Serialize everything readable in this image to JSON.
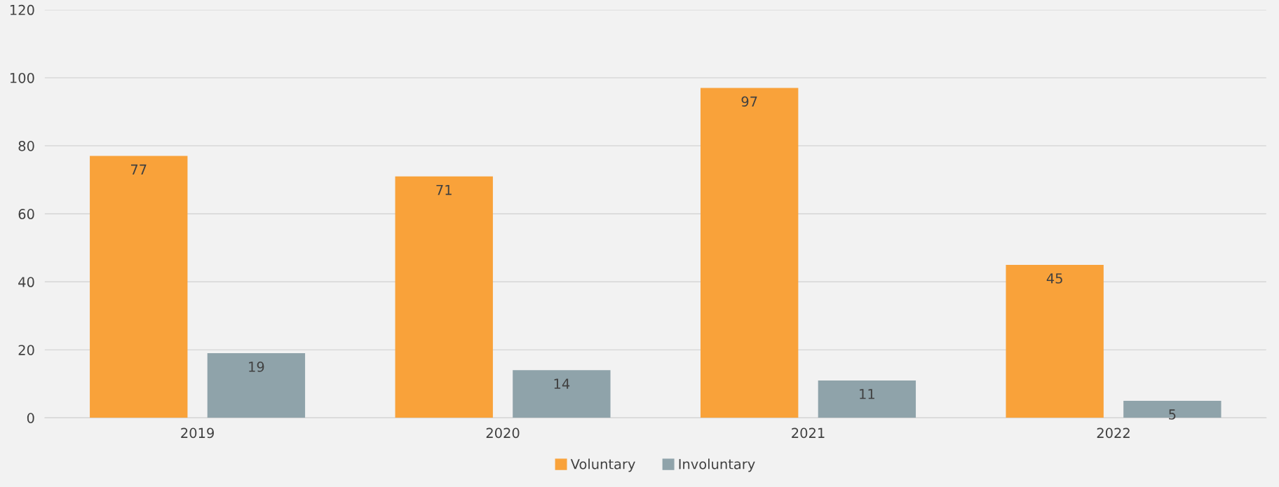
{
  "chart_data": {
    "type": "bar",
    "categories": [
      "2019",
      "2020",
      "2021",
      "2022"
    ],
    "series": [
      {
        "name": "Voluntary",
        "color": "#f9a23a",
        "values": [
          77,
          71,
          97,
          45
        ]
      },
      {
        "name": "Involuntary",
        "color": "#8fa3aa",
        "values": [
          19,
          14,
          11,
          5
        ]
      }
    ],
    "ylim": [
      0,
      120
    ],
    "yticks": [
      0,
      20,
      40,
      60,
      80,
      100,
      120
    ],
    "grid": "y",
    "legend": "bottom",
    "data_labels": true
  }
}
